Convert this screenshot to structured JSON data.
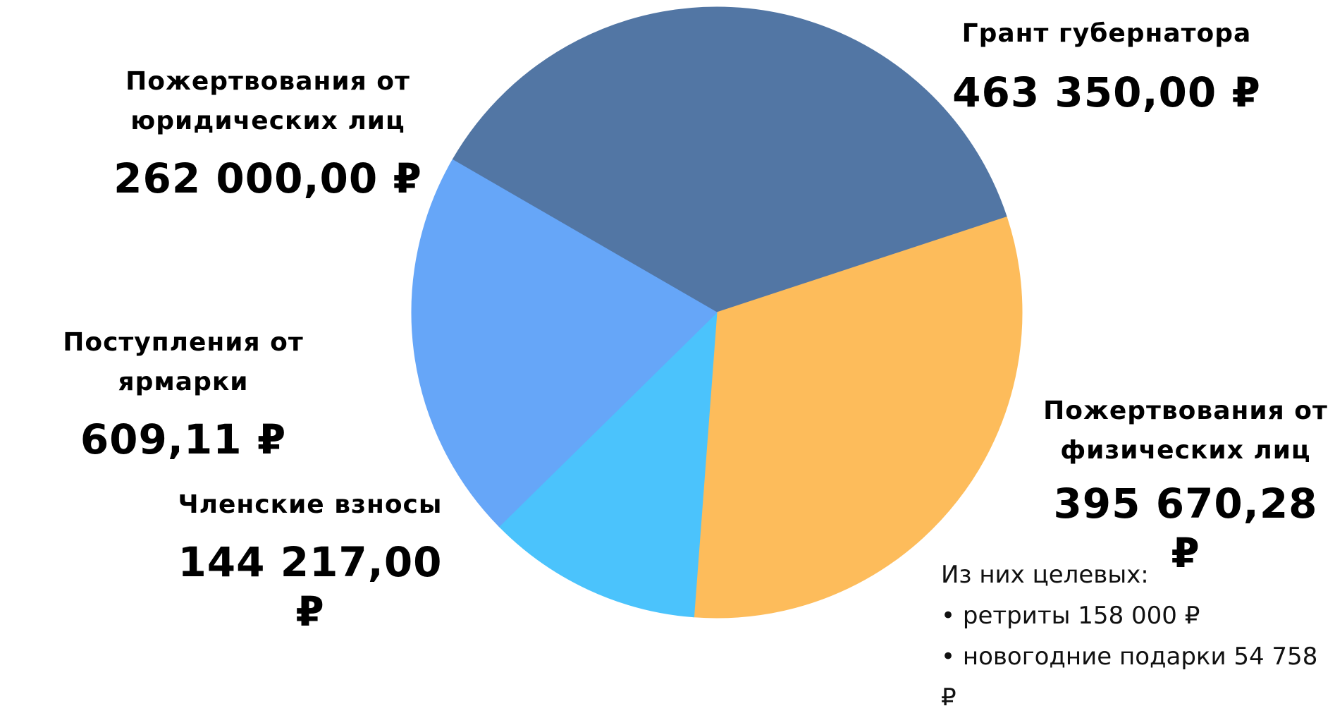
{
  "chart_data": {
    "type": "pie",
    "slices": [
      {
        "label": "Грант губернатора",
        "value": 463350.0,
        "value_text": "463 350,00 ₽",
        "color": "#5276A4"
      },
      {
        "label": "Пожертвования от физических лиц",
        "value": 395670.28,
        "value_text": "395 670,28 ₽",
        "color": "#FDBC5B"
      },
      {
        "label": "Членские взносы",
        "value": 144217.0,
        "value_text": "144 217,00 ₽",
        "color": "#4BC3FC"
      },
      {
        "label": "Поступления от ярмарки",
        "value": 609.11,
        "value_text": "609,11 ₽",
        "color": "#4BC3FC"
      },
      {
        "label": "Пожертвования от юридических лиц",
        "value": 262000.0,
        "value_text": "262 000,00 ₽",
        "color": "#66A6F8"
      }
    ],
    "labels": {
      "grant": {
        "name": "Грант губернатора",
        "value": "463 350,00 ₽"
      },
      "legal": {
        "name_line1": "Пожертвования от",
        "name_line2": "юридических лиц",
        "value": "262 000,00 ₽"
      },
      "fair": {
        "name": "Поступления от ярмарки",
        "value": "609,11 ₽"
      },
      "members": {
        "name": "Членские взносы",
        "value": "144 217,00 ₽"
      },
      "individuals": {
        "name_line1": "Пожертвования от",
        "name_line2": "физических лиц",
        "value": "395 670,28 ₽"
      }
    },
    "note": {
      "heading": "Из них целевых:",
      "items": [
        "• ретриты 158 000 ₽",
        "• новогодние подарки 54 758 ₽"
      ]
    }
  }
}
